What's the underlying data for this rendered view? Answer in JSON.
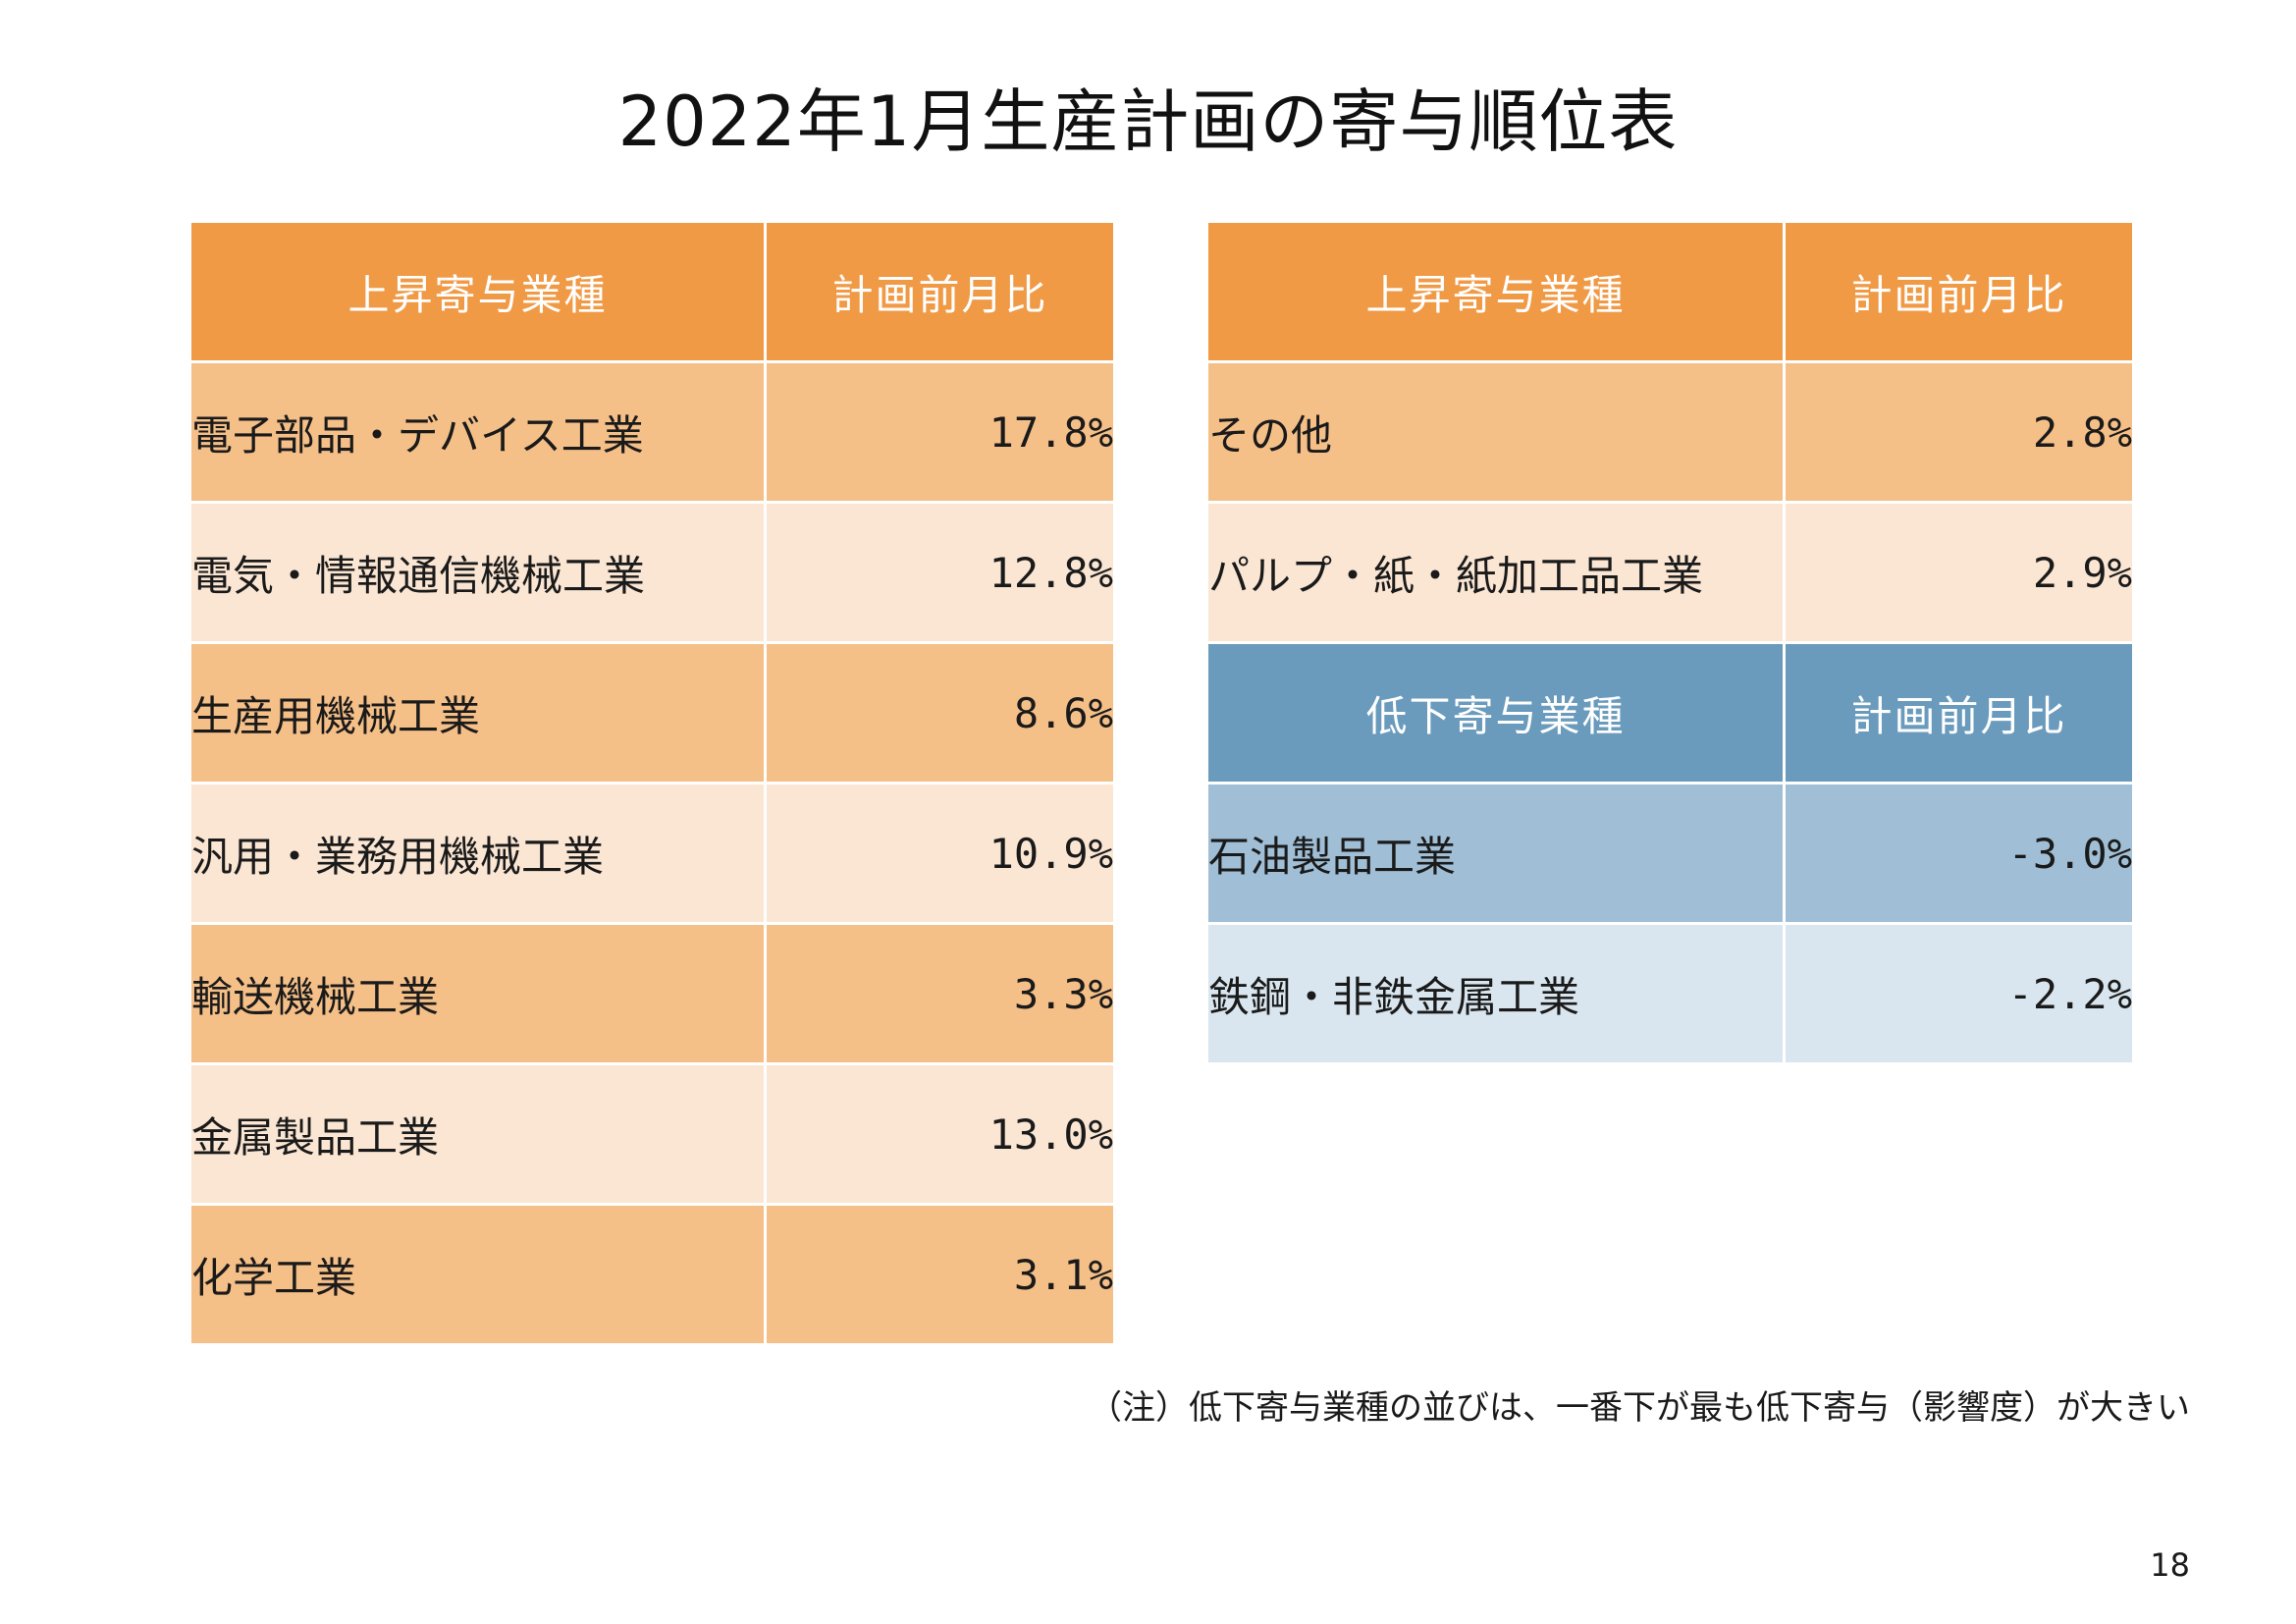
{
  "title": "2022年1月生産計画の寄与順位表",
  "left_table": {
    "header": {
      "name": "上昇寄与業種",
      "value": "計画前月比"
    },
    "rows": [
      {
        "name": "電子部品・デバイス工業",
        "value": "17.8%"
      },
      {
        "name": "電気・情報通信機械工業",
        "value": "12.8%"
      },
      {
        "name": "生産用機械工業",
        "value": "8.6%"
      },
      {
        "name": "汎用・業務用機械工業",
        "value": "10.9%"
      },
      {
        "name": "輸送機械工業",
        "value": "3.3%"
      },
      {
        "name": "金属製品工業",
        "value": "13.0%"
      },
      {
        "name": "化学工業",
        "value": "3.1%"
      }
    ]
  },
  "right_table": {
    "up_header": {
      "name": "上昇寄与業種",
      "value": "計画前月比"
    },
    "up_rows": [
      {
        "name": "その他",
        "value": "2.8%"
      },
      {
        "name": "パルプ・紙・紙加工品工業",
        "value": "2.9%"
      }
    ],
    "down_header": {
      "name": "低下寄与業種",
      "value": "計画前月比"
    },
    "down_rows": [
      {
        "name": "石油製品工業",
        "value": "-3.0%"
      },
      {
        "name": "鉄鋼・非鉄金属工業",
        "value": "-2.2%"
      }
    ]
  },
  "note": "（注）低下寄与業種の並びは、一番下が最も低下寄与（影響度）が大きい",
  "page_number": "18",
  "colors": {
    "up_header": "#f09a46",
    "up_row_dark": "#f5bf88",
    "up_row_light": "#fae6d3",
    "down_header": "#6a9bbd",
    "down_row_dark": "#a0bfd6",
    "down_row_light": "#d9e6ef"
  }
}
